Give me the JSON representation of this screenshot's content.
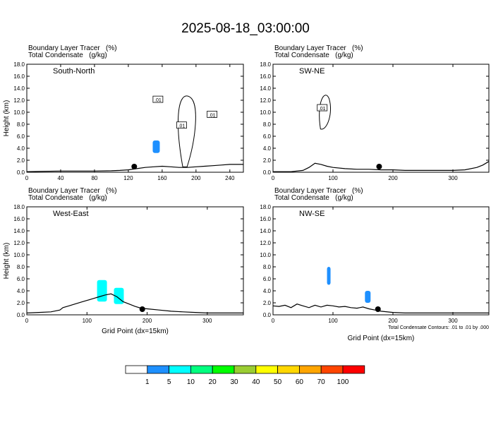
{
  "title": "2025-08-18_03:00:00",
  "chart_data": [
    {
      "type": "cross-section",
      "header": [
        "Boundary Layer Tracer   (%)",
        "Total Condensate   (g/kg)"
      ],
      "panel_label": "South-North",
      "xlabel": "",
      "ylabel": "Height (km)",
      "xlim": [
        0,
        256
      ],
      "xticks": [
        0,
        40,
        80,
        120,
        160,
        200,
        240
      ],
      "ylim": [
        0,
        18
      ],
      "yticks": [
        "0.0",
        "2.0",
        "4.0",
        "6.0",
        "8.0",
        "10.0",
        "12.0",
        "14.0",
        "16.0",
        "18.0"
      ],
      "terrain": [
        [
          0,
          0.1
        ],
        [
          20,
          0.15
        ],
        [
          40,
          0.2
        ],
        [
          60,
          0.2
        ],
        [
          80,
          0.2
        ],
        [
          100,
          0.25
        ],
        [
          110,
          0.3
        ],
        [
          120,
          0.4
        ],
        [
          130,
          0.6
        ],
        [
          140,
          0.8
        ],
        [
          150,
          0.9
        ],
        [
          160,
          1.0
        ],
        [
          170,
          0.9
        ],
        [
          180,
          0.8
        ],
        [
          190,
          0.8
        ],
        [
          200,
          0.9
        ],
        [
          210,
          1.0
        ],
        [
          220,
          1.1
        ],
        [
          230,
          1.2
        ],
        [
          240,
          1.3
        ],
        [
          250,
          1.3
        ],
        [
          256,
          1.3
        ]
      ],
      "marker_x": 127,
      "contour_labels": [
        {
          "x": 155,
          "y": 12.1,
          "text": ".01"
        },
        {
          "x": 183,
          "y": 7.8,
          "text": ".01"
        },
        {
          "x": 219,
          "y": 9.6,
          "text": ".01"
        }
      ],
      "tracer_patches": [
        {
          "x": 153,
          "y0": 3.2,
          "y1": 5.3,
          "width": 10,
          "level": "1"
        }
      ]
    },
    {
      "type": "cross-section",
      "header": [
        "Boundary Layer Tracer   (%)",
        "Total Condensate   (g/kg)"
      ],
      "panel_label": "SW-NE",
      "xlabel": "",
      "ylabel": "",
      "xlim": [
        0,
        360
      ],
      "xticks": [
        0,
        100,
        200,
        300
      ],
      "ylim": [
        0,
        18
      ],
      "yticks": [
        "0.0",
        "2.0",
        "4.0",
        "6.0",
        "8.0",
        "10.0",
        "12.0",
        "14.0",
        "16.0",
        "18.0"
      ],
      "terrain": [
        [
          0,
          0.1
        ],
        [
          30,
          0.1
        ],
        [
          50,
          0.3
        ],
        [
          60,
          0.8
        ],
        [
          70,
          1.5
        ],
        [
          80,
          1.3
        ],
        [
          90,
          1.0
        ],
        [
          100,
          0.8
        ],
        [
          120,
          0.6
        ],
        [
          140,
          0.5
        ],
        [
          160,
          0.5
        ],
        [
          180,
          0.4
        ],
        [
          200,
          0.4
        ],
        [
          220,
          0.3
        ],
        [
          250,
          0.3
        ],
        [
          280,
          0.3
        ],
        [
          300,
          0.3
        ],
        [
          320,
          0.4
        ],
        [
          340,
          0.8
        ],
        [
          350,
          1.2
        ],
        [
          360,
          1.8
        ]
      ],
      "marker_x": 177,
      "contour_labels": [
        {
          "x": 82,
          "y": 10.7,
          "text": ".01"
        }
      ],
      "tracer_patches": []
    },
    {
      "type": "cross-section",
      "header": [
        "Boundary Layer Tracer   (%)",
        "Total Condensate   (g/kg)"
      ],
      "panel_label": "West-East",
      "xlabel": "Grid Point (dx=15km)",
      "ylabel": "Height (km)",
      "xlim": [
        0,
        360
      ],
      "xticks": [
        0,
        100,
        200,
        300
      ],
      "ylim": [
        0,
        18
      ],
      "yticks": [
        "0.0",
        "2.0",
        "4.0",
        "6.0",
        "8.0",
        "10.0",
        "12.0",
        "14.0",
        "16.0",
        "18.0"
      ],
      "terrain": [
        [
          0,
          0.3
        ],
        [
          20,
          0.4
        ],
        [
          40,
          0.5
        ],
        [
          55,
          0.8
        ],
        [
          60,
          1.2
        ],
        [
          70,
          1.5
        ],
        [
          80,
          1.8
        ],
        [
          90,
          2.1
        ],
        [
          100,
          2.4
        ],
        [
          110,
          2.7
        ],
        [
          120,
          3.0
        ],
        [
          130,
          3.3
        ],
        [
          140,
          3.5
        ],
        [
          150,
          3.0
        ],
        [
          160,
          2.2
        ],
        [
          170,
          1.8
        ],
        [
          180,
          1.4
        ],
        [
          190,
          1.1
        ],
        [
          200,
          1.0
        ],
        [
          220,
          0.8
        ],
        [
          240,
          0.6
        ],
        [
          260,
          0.5
        ],
        [
          280,
          0.4
        ],
        [
          300,
          0.3
        ],
        [
          320,
          0.3
        ],
        [
          340,
          0.3
        ],
        [
          360,
          0.3
        ]
      ],
      "marker_x": 192,
      "contour_labels": [],
      "tracer_patches": [
        {
          "x": 125,
          "y0": 2.2,
          "y1": 5.8,
          "width": 14,
          "level": "5"
        },
        {
          "x": 153,
          "y0": 1.8,
          "y1": 4.5,
          "width": 14,
          "level": "5"
        }
      ]
    },
    {
      "type": "cross-section",
      "header": [
        "Boundary Layer Tracer   (%)",
        "Total Condensate   (g/kg)"
      ],
      "panel_label": "NW-SE",
      "xlabel": "Grid Point (dx=15km)",
      "ylabel": "",
      "xlim": [
        0,
        360
      ],
      "xticks": [
        0,
        100,
        200,
        300
      ],
      "ylim": [
        0,
        18
      ],
      "yticks": [
        "0.0",
        "2.0",
        "4.0",
        "6.0",
        "8.0",
        "10.0",
        "12.0",
        "14.0",
        "16.0",
        "18.0"
      ],
      "terrain": [
        [
          0,
          1.5
        ],
        [
          10,
          1.4
        ],
        [
          20,
          1.6
        ],
        [
          30,
          1.2
        ],
        [
          40,
          1.8
        ],
        [
          50,
          1.5
        ],
        [
          60,
          1.2
        ],
        [
          70,
          1.6
        ],
        [
          80,
          1.3
        ],
        [
          90,
          1.6
        ],
        [
          100,
          1.5
        ],
        [
          110,
          1.3
        ],
        [
          120,
          1.4
        ],
        [
          130,
          1.2
        ],
        [
          140,
          1.1
        ],
        [
          150,
          1.3
        ],
        [
          160,
          1.0
        ],
        [
          170,
          0.8
        ],
        [
          180,
          0.6
        ],
        [
          200,
          0.4
        ],
        [
          220,
          0.3
        ],
        [
          260,
          0.3
        ],
        [
          300,
          0.3
        ],
        [
          340,
          0.3
        ],
        [
          360,
          0.3
        ]
      ],
      "marker_x": 175,
      "contour_labels": [],
      "tracer_patches": [
        {
          "x": 93,
          "y0": 5.0,
          "y1": 8.0,
          "width": 5,
          "level": "1"
        },
        {
          "x": 158,
          "y0": 2.0,
          "y1": 4.0,
          "width": 8,
          "level": "1"
        }
      ],
      "footnote": "Total Condensate Contours: .01 to .01 by .000"
    }
  ],
  "colorbar": {
    "levels": [
      "1",
      "5",
      "10",
      "20",
      "30",
      "40",
      "50",
      "60",
      "70",
      "100"
    ],
    "colors": [
      "#ffffff",
      "#1e90ff",
      "#00ffff",
      "#00ff7f",
      "#00ff00",
      "#9acd32",
      "#ffff00",
      "#ffd700",
      "#ffa500",
      "#ff4500",
      "#ff0000"
    ]
  }
}
